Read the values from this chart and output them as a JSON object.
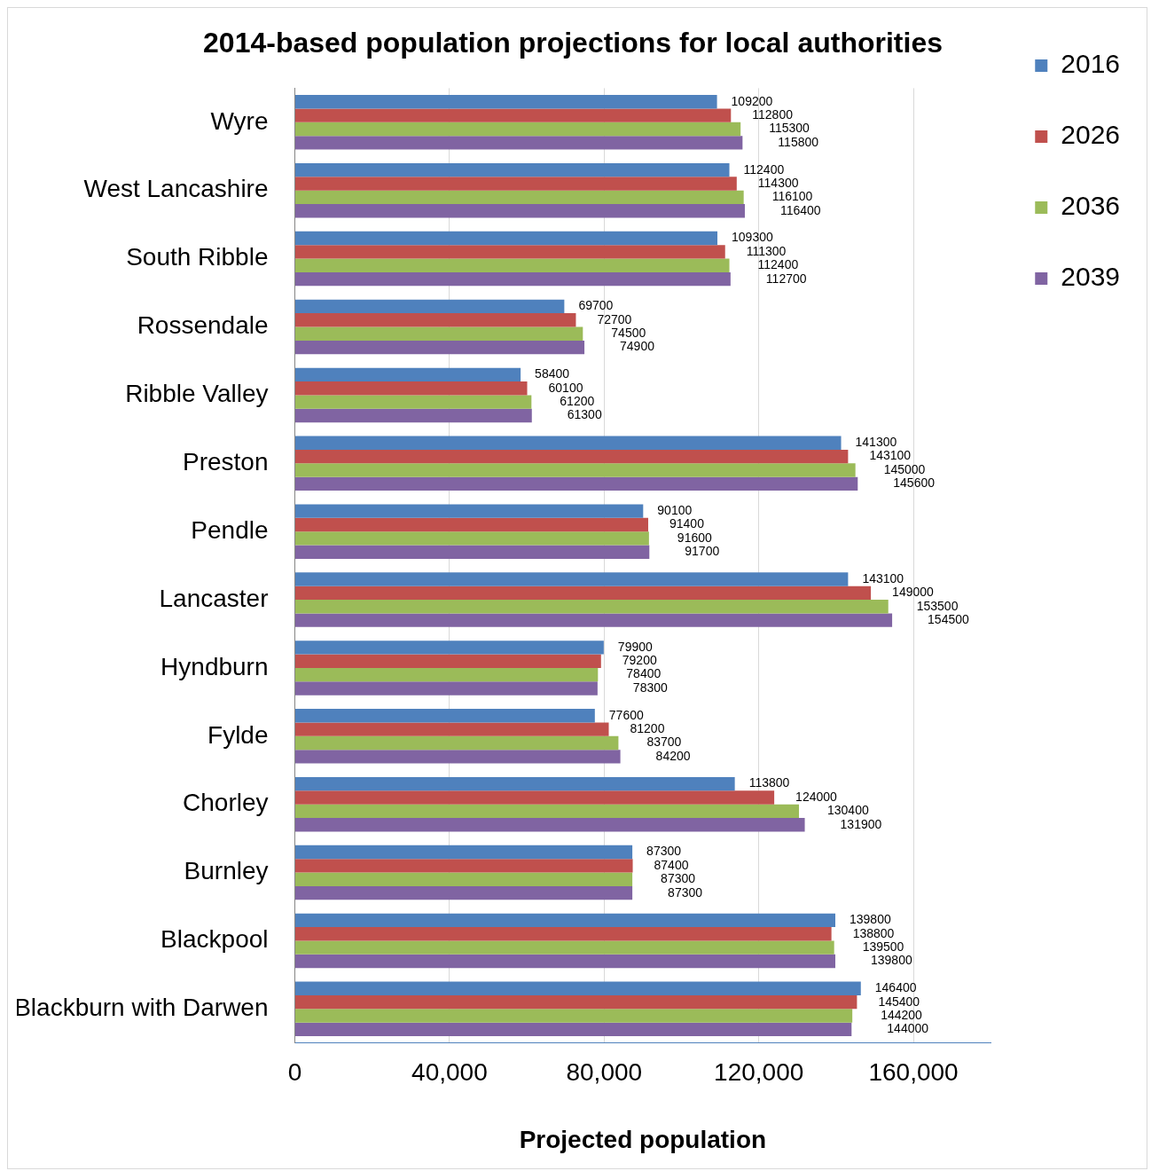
{
  "chart_data": {
    "type": "bar",
    "orientation": "horizontal",
    "title": "2014-based population projections for local authorities",
    "xlabel": "Projected population",
    "categories": [
      "Wyre",
      "West Lancashire",
      "South Ribble",
      "Rossendale",
      "Ribble Valley",
      "Preston",
      "Pendle",
      "Lancaster",
      "Hyndburn",
      "Fylde",
      "Chorley",
      "Burnley",
      "Blackpool",
      "Blackburn with Darwen"
    ],
    "series": [
      {
        "name": "2016",
        "color": "#4f81bd",
        "values": [
          109200,
          112400,
          109300,
          69700,
          58400,
          141300,
          90100,
          143100,
          79900,
          77600,
          113800,
          87300,
          139800,
          146400
        ]
      },
      {
        "name": "2026",
        "color": "#c0504d",
        "values": [
          112800,
          114300,
          111300,
          72700,
          60100,
          143100,
          91400,
          149000,
          79200,
          81200,
          124000,
          87400,
          138800,
          145400
        ]
      },
      {
        "name": "2036",
        "color": "#9bbb59",
        "values": [
          115300,
          116100,
          112400,
          74500,
          61200,
          145000,
          91600,
          153500,
          78400,
          83700,
          130400,
          87300,
          139500,
          144200
        ]
      },
      {
        "name": "2039",
        "color": "#8064a2",
        "values": [
          115800,
          116400,
          112700,
          74900,
          61300,
          145600,
          91700,
          154500,
          78300,
          84200,
          131900,
          87300,
          139800,
          144000
        ]
      }
    ],
    "xlim": [
      0,
      180000
    ],
    "xticks": [
      0,
      {
        "value": 40000,
        "label": "40,000"
      },
      {
        "value": 80000,
        "label": "80,000"
      },
      {
        "value": 120000,
        "label": "120,000"
      },
      {
        "value": 160000,
        "label": "160,000"
      }
    ],
    "grid": "x",
    "legend": "right",
    "data_labels": true
  }
}
